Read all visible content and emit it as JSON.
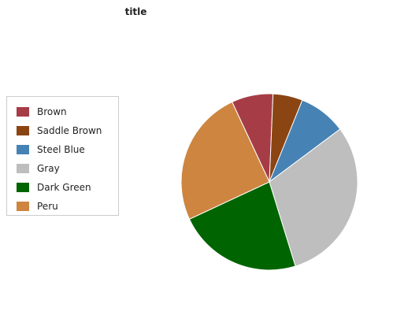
{
  "chart_data": {
    "type": "pie",
    "title": "title",
    "legend_position": "left",
    "slices": [
      {
        "label": "Brown",
        "value": 7,
        "color": "#a63d46"
      },
      {
        "label": "Saddle Brown",
        "value": 5,
        "color": "#8b4513"
      },
      {
        "label": "Steel Blue",
        "value": 8,
        "color": "#4682b4"
      },
      {
        "label": "Gray",
        "value": 28,
        "color": "#bebebe"
      },
      {
        "label": "Dark Green",
        "value": 21,
        "color": "#006400"
      },
      {
        "label": "Peru",
        "value": 23,
        "color": "#cd853f"
      }
    ]
  }
}
